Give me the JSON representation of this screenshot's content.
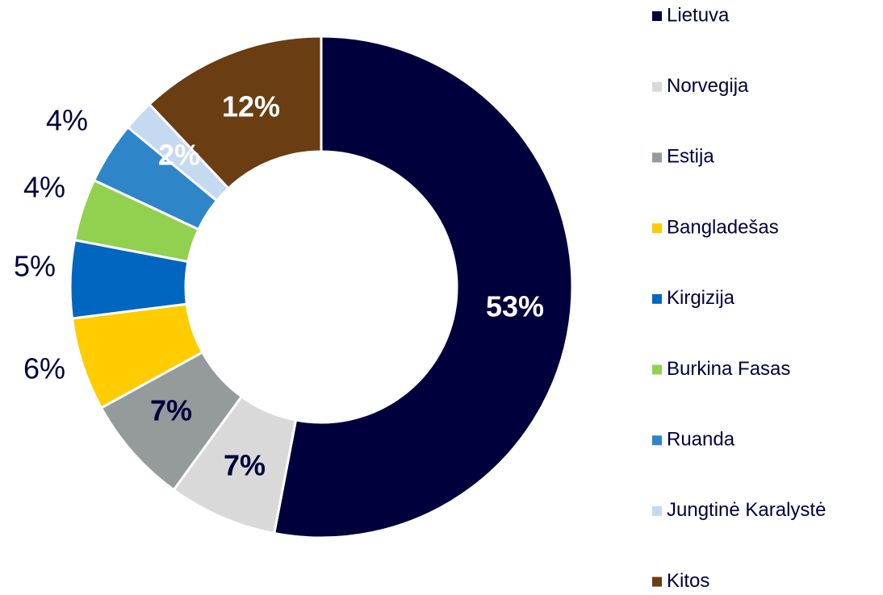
{
  "chart_data": {
    "type": "donut",
    "categories": [
      "Lietuva",
      "Norvegija",
      "Estija",
      "Bangladešas",
      "Kirgizija",
      "Burkina Fasas",
      "Ruanda",
      "Jungtinė Karalystė",
      "Kitos"
    ],
    "values": [
      53,
      7,
      7,
      6,
      5,
      4,
      4,
      2,
      12
    ],
    "value_labels": [
      "53%",
      "7%",
      "7%",
      "6%",
      "5%",
      "4%",
      "4%",
      "2%",
      "12%"
    ],
    "colors": [
      "#00003c",
      "#d9d9d9",
      "#959a9a",
      "#ffcc00",
      "#0066c0",
      "#92d050",
      "#2e86c8",
      "#c5d9f1",
      "#6b3d12"
    ],
    "legend": "right"
  }
}
